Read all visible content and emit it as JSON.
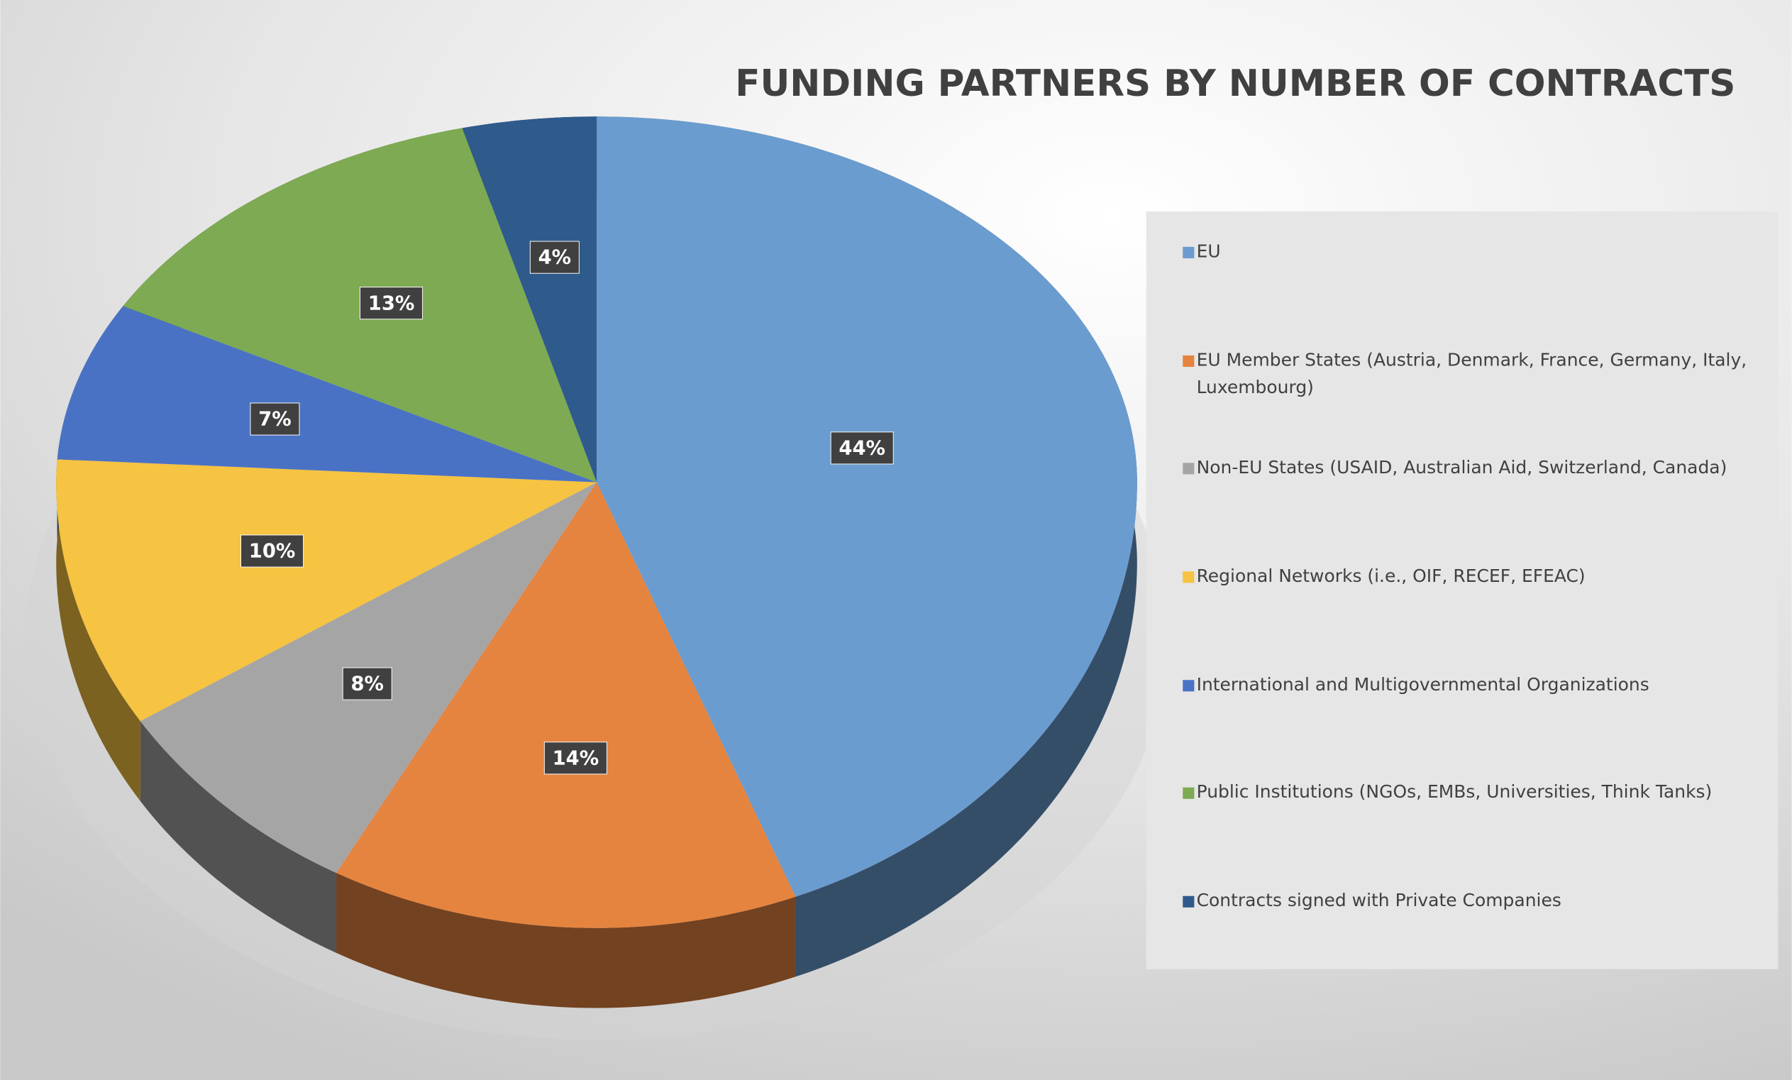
{
  "chart_data": {
    "type": "pie",
    "title": "FUNDING PARTNERS BY NUMBER OF CONTRACTS",
    "categories": [
      "EU",
      "EU Member States (Austria, Denmark, France, Germany, Italy, Luxembourg)",
      "Non-EU States (USAID, Australian Aid, Switzerland, Canada)",
      "Regional Networks (i.e., OIF, RECEF, EFEAC)",
      "International and Multigovernmental Organizations",
      "Public Institutions (NGOs, EMBs, Universities, Think Tanks)",
      "Contracts signed with Private Companies"
    ],
    "values": [
      44,
      14,
      8,
      10,
      7,
      13,
      4
    ],
    "value_labels": [
      "44%",
      "14%",
      "8%",
      "10%",
      "7%",
      "13%",
      "4%"
    ],
    "colors": [
      "#6a9ccf",
      "#e5843f",
      "#a5a5a5",
      "#f6c342",
      "#4a72c4",
      "#7daa52",
      "#2f5a8c"
    ],
    "legend": "right"
  }
}
